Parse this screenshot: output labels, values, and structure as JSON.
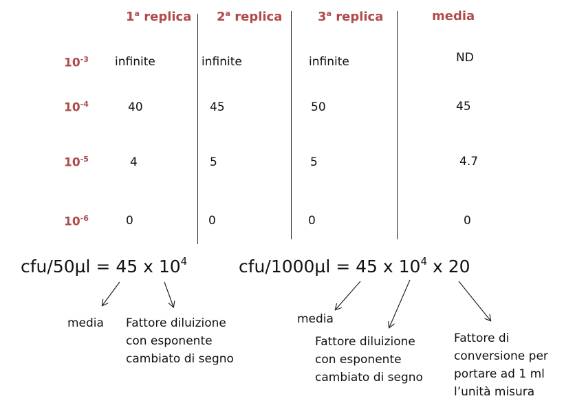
{
  "table": {
    "headers": [
      {
        "pre": "1",
        "sup": "a",
        "post": " replica"
      },
      {
        "pre": "2",
        "sup": "a",
        "post": " replica"
      },
      {
        "pre": "3",
        "sup": "a",
        "post": " replica"
      },
      {
        "pre": "media",
        "sup": "",
        "post": ""
      }
    ],
    "rows": [
      {
        "base": "10",
        "exp": "-3",
        "values": [
          "infinite",
          "infinite",
          "infinite",
          "ND"
        ]
      },
      {
        "base": "10",
        "exp": "-4",
        "values": [
          "40",
          "45",
          "50",
          "45"
        ]
      },
      {
        "base": "10",
        "exp": "-5",
        "values": [
          "4",
          "5",
          "5",
          "4.7"
        ]
      },
      {
        "base": "10",
        "exp": "-6",
        "values": [
          "0",
          "0",
          "0",
          "0"
        ]
      }
    ]
  },
  "formula1": {
    "prefix": "cfu/50µl = 45 x 10",
    "exp": "4",
    "suffix": ""
  },
  "formula2": {
    "prefix": "cfu/1000µl = 45 x 10",
    "exp": "4",
    "suffix": " x 20"
  },
  "notes": {
    "media1": "media",
    "fattore1": [
      "Fattore diluizione",
      "con esponente",
      "cambiato di segno"
    ],
    "media2": "media",
    "fattore2": [
      "Fattore diluizione",
      "con esponente",
      "cambiato di segno"
    ],
    "conversione": [
      "Fattore di",
      "conversione per",
      "portare ad 1 ml",
      "l’unità misura"
    ]
  }
}
